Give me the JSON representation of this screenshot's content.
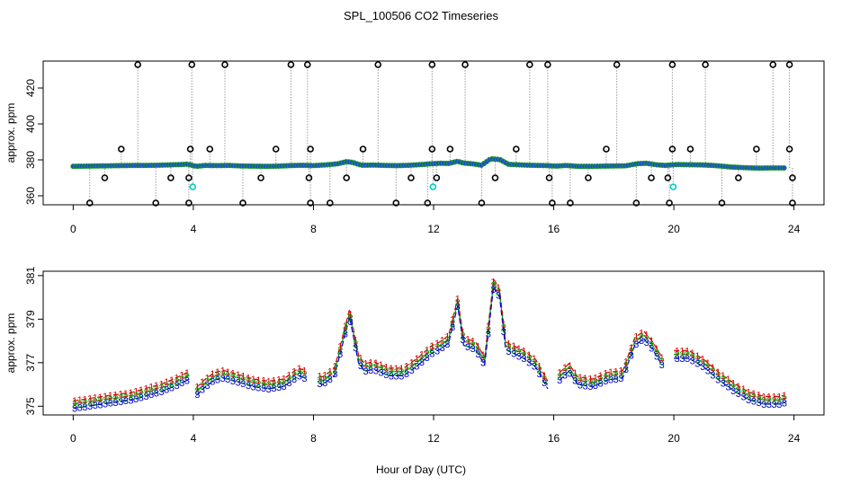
{
  "title": "SPL_100506  CO2 Timeseries",
  "xlabel": "Hour of Day (UTC)",
  "colors": {
    "axis": "#000000",
    "spike_line": "#9a9a9a",
    "flag_marker": "#000000",
    "cal_marker": "#00c8c8",
    "series1": "#d40000",
    "series2": "#00a000",
    "series3": "#0000cc",
    "main_point_fill": "#1e4fd0",
    "main_point_edge": "#1a9a2a"
  },
  "chart_data": [
    {
      "type": "scatter",
      "panel": "top",
      "title": "SPL_100506  CO2 Timeseries",
      "ylabel": "approx. ppm",
      "xlabel": "",
      "xlim": [
        -1,
        25
      ],
      "ylim": [
        355,
        435
      ],
      "xticks": [
        "0",
        "4",
        "8",
        "12",
        "16",
        "20",
        "24"
      ],
      "yticks": [
        "360",
        "380",
        "400",
        "420"
      ],
      "baseline_points": [
        [
          0.0,
          376.4
        ],
        [
          0.4,
          376.5
        ],
        [
          0.8,
          376.6
        ],
        [
          1.2,
          376.7
        ],
        [
          1.6,
          376.8
        ],
        [
          2.0,
          376.9
        ],
        [
          2.4,
          376.9
        ],
        [
          2.8,
          377.0
        ],
        [
          3.2,
          377.2
        ],
        [
          3.6,
          377.4
        ],
        [
          3.8,
          377.6
        ],
        [
          4.1,
          376.4
        ],
        [
          4.4,
          376.9
        ],
        [
          4.8,
          376.8
        ],
        [
          5.2,
          376.9
        ],
        [
          5.6,
          376.6
        ],
        [
          6.0,
          376.5
        ],
        [
          6.4,
          376.4
        ],
        [
          6.8,
          376.5
        ],
        [
          7.2,
          376.8
        ],
        [
          7.6,
          377.0
        ],
        [
          8.0,
          376.8
        ],
        [
          8.4,
          377.2
        ],
        [
          8.8,
          377.8
        ],
        [
          9.1,
          379.0
        ],
        [
          9.3,
          378.6
        ],
        [
          9.6,
          377.0
        ],
        [
          10.0,
          377.1
        ],
        [
          10.4,
          376.9
        ],
        [
          10.8,
          376.8
        ],
        [
          11.2,
          377.0
        ],
        [
          11.6,
          377.4
        ],
        [
          11.9,
          377.8
        ],
        [
          12.2,
          378.1
        ],
        [
          12.5,
          378.0
        ],
        [
          12.8,
          379.2
        ],
        [
          13.0,
          378.2
        ],
        [
          13.3,
          377.8
        ],
        [
          13.6,
          377.0
        ],
        [
          13.9,
          380.6
        ],
        [
          14.2,
          380.2
        ],
        [
          14.5,
          377.5
        ],
        [
          14.9,
          377.2
        ],
        [
          15.2,
          377.0
        ],
        [
          15.5,
          376.9
        ],
        [
          15.8,
          376.8
        ],
        [
          16.1,
          376.5
        ],
        [
          16.4,
          376.9
        ],
        [
          16.8,
          376.4
        ],
        [
          17.2,
          376.4
        ],
        [
          17.6,
          376.5
        ],
        [
          18.0,
          376.6
        ],
        [
          18.4,
          376.7
        ],
        [
          18.8,
          377.9
        ],
        [
          19.1,
          378.1
        ],
        [
          19.4,
          377.3
        ],
        [
          19.7,
          376.9
        ],
        [
          20.1,
          377.4
        ],
        [
          20.5,
          377.3
        ],
        [
          20.9,
          377.2
        ],
        [
          21.3,
          376.9
        ],
        [
          21.6,
          376.5
        ],
        [
          21.9,
          376.0
        ],
        [
          22.3,
          375.7
        ],
        [
          22.6,
          375.5
        ],
        [
          22.9,
          375.4
        ],
        [
          23.2,
          375.5
        ],
        [
          23.5,
          375.5
        ],
        [
          23.7,
          375.5
        ]
      ],
      "spikes_high": [
        2.15,
        3.95,
        5.05,
        7.25,
        7.8,
        10.15,
        11.95,
        13.05,
        15.2,
        15.8,
        18.1,
        19.95,
        21.05,
        23.3,
        23.85
      ],
      "spikes_low": [
        0.55,
        2.75,
        3.85,
        5.65,
        7.9,
        8.55,
        10.75,
        11.8,
        13.6,
        15.95,
        16.55,
        18.75,
        19.85,
        21.6,
        23.95
      ],
      "flags_mid_high": [
        1.6,
        3.9,
        4.55,
        6.75,
        7.9,
        9.65,
        11.95,
        12.55,
        14.75,
        17.75,
        19.95,
        20.55,
        22.75,
        23.85
      ],
      "flags_mid_low": [
        1.05,
        3.25,
        3.85,
        6.25,
        7.85,
        9.1,
        11.25,
        12.1,
        14.05,
        15.85,
        17.15,
        19.25,
        19.8,
        22.15,
        23.95
      ],
      "spike_values": {
        "high": 433,
        "low": 356,
        "mid_high": 386,
        "mid_low": 370
      },
      "cal_points": [
        [
          3.98,
          365
        ],
        [
          11.98,
          365
        ],
        [
          19.98,
          365
        ]
      ]
    },
    {
      "type": "line",
      "panel": "bottom",
      "ylabel": "approx. ppm",
      "xlabel": "Hour of Day (UTC)",
      "xlim": [
        -1,
        25
      ],
      "ylim": [
        374.6,
        381.2
      ],
      "xticks": [
        "0",
        "4",
        "8",
        "12",
        "16",
        "20",
        "24"
      ],
      "yticks": [
        "375",
        "377",
        "379",
        "381"
      ],
      "series": [
        {
          "name": "1",
          "offset": 0.35
        },
        {
          "name": "2",
          "offset": 0.18
        },
        {
          "name": "3",
          "offset": 0.0
        }
      ],
      "x": [
        0.0,
        0.5,
        1.0,
        1.5,
        2.0,
        2.5,
        3.0,
        3.5,
        3.8,
        4.1,
        4.4,
        4.7,
        5.0,
        5.5,
        6.0,
        6.5,
        7.0,
        7.5,
        7.9,
        8.3,
        8.7,
        9.0,
        9.2,
        9.5,
        9.7,
        10.0,
        10.5,
        11.0,
        11.5,
        11.9,
        12.2,
        12.5,
        12.8,
        13.0,
        13.4,
        13.7,
        14.0,
        14.2,
        14.4,
        14.7,
        15.0,
        15.4,
        15.8,
        16.2,
        16.5,
        16.8,
        17.3,
        17.8,
        18.3,
        18.7,
        19.0,
        19.3,
        19.6,
        20.0,
        20.5,
        21.0,
        21.5,
        22.0,
        22.5,
        23.0,
        23.5,
        23.8
      ],
      "values": [
        374.9,
        375.0,
        375.1,
        375.2,
        375.3,
        375.5,
        375.7,
        376.0,
        376.2,
        375.5,
        375.9,
        376.2,
        376.3,
        376.1,
        375.9,
        375.8,
        375.9,
        376.4,
        376.2,
        376.0,
        376.4,
        378.0,
        379.1,
        377.0,
        376.6,
        376.7,
        376.4,
        376.4,
        376.9,
        377.4,
        377.6,
        377.9,
        379.6,
        377.8,
        377.6,
        376.9,
        380.5,
        380.0,
        377.6,
        377.4,
        377.2,
        376.8,
        375.8,
        376.2,
        376.6,
        376.0,
        375.9,
        376.2,
        376.3,
        377.8,
        378.1,
        377.6,
        376.9,
        377.2,
        377.2,
        376.8,
        376.2,
        375.7,
        375.3,
        375.1,
        375.1,
        375.2
      ]
    }
  ]
}
